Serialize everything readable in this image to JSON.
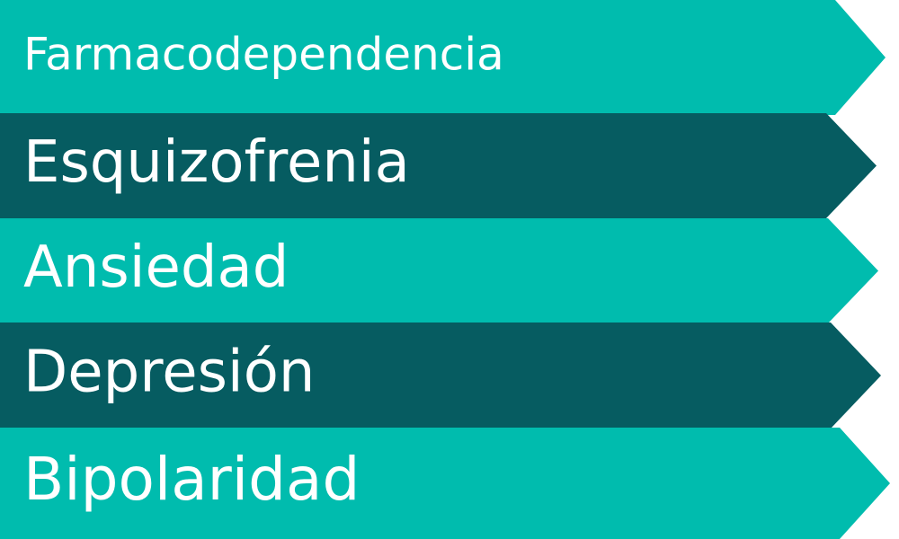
{
  "colors": {
    "teal_light": "#00bcae",
    "teal_dark": "#065c61",
    "text": "#ffffff"
  },
  "items": [
    {
      "label": "Farmacodependencia",
      "color": "teal_light"
    },
    {
      "label": "Esquizofrenia",
      "color": "teal_dark"
    },
    {
      "label": "Ansiedad",
      "color": "teal_light"
    },
    {
      "label": "Depresión",
      "color": "teal_dark"
    },
    {
      "label": "Bipolaridad",
      "color": "teal_light"
    }
  ]
}
